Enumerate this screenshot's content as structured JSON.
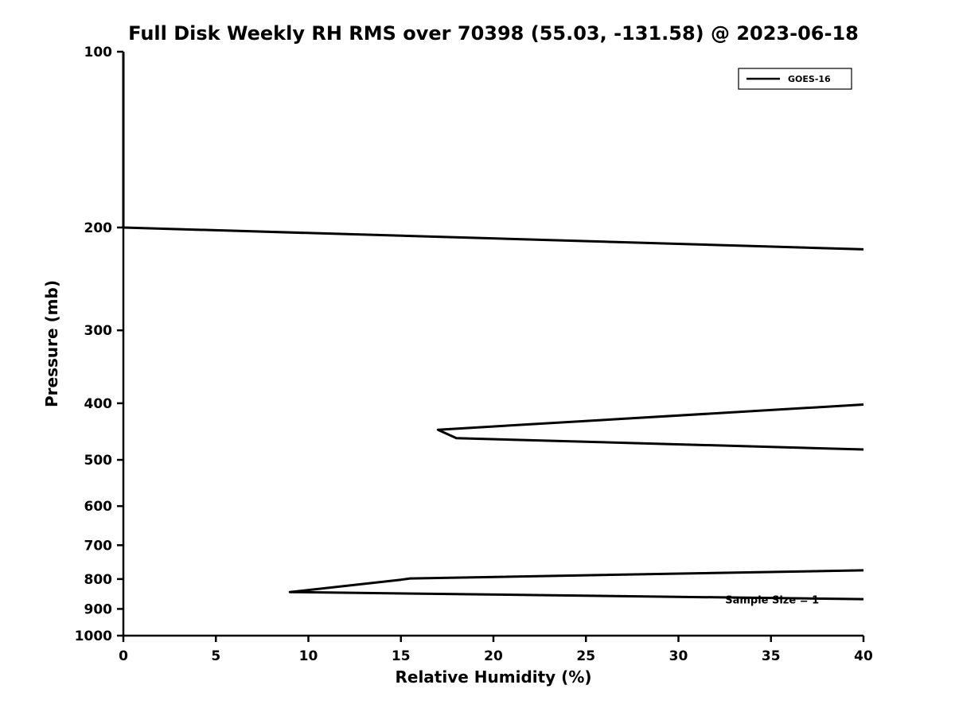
{
  "chart_data": {
    "type": "line",
    "title": "Full Disk Weekly RH RMS over 70398 (55.03, -131.58) @ 2023-06-18",
    "xlabel": "Relative Humidity (%)",
    "ylabel": "Pressure (mb)",
    "xlim": [
      0,
      40
    ],
    "ylim_top": 100,
    "ylim_bottom": 1000,
    "yscale": "log",
    "grid": false,
    "xticks": [
      0,
      5,
      10,
      15,
      20,
      25,
      30,
      35,
      40
    ],
    "yticks": [
      100,
      200,
      300,
      400,
      500,
      600,
      700,
      800,
      900,
      1000
    ],
    "legend": {
      "position": "upper right",
      "entries": [
        {
          "label": "GOES-16",
          "color": "#000000"
        }
      ]
    },
    "annotation": {
      "text": "Sample Size = 1",
      "x": 37.6,
      "y": 880
    },
    "series": [
      {
        "name": "GOES-16",
        "color": "#000000",
        "line_width": 3,
        "segments": [
          [
            [
              0,
              100
            ],
            [
              0,
              200
            ],
            [
              40,
              218
            ]
          ],
          [
            [
              40,
              402
            ],
            [
              17,
              444
            ],
            [
              18,
              459
            ],
            [
              40,
              480
            ]
          ],
          [
            [
              40,
              773
            ],
            [
              15.5,
              798
            ],
            [
              15,
              802
            ],
            [
              9,
              842
            ],
            [
              40,
              866
            ]
          ]
        ]
      }
    ]
  }
}
